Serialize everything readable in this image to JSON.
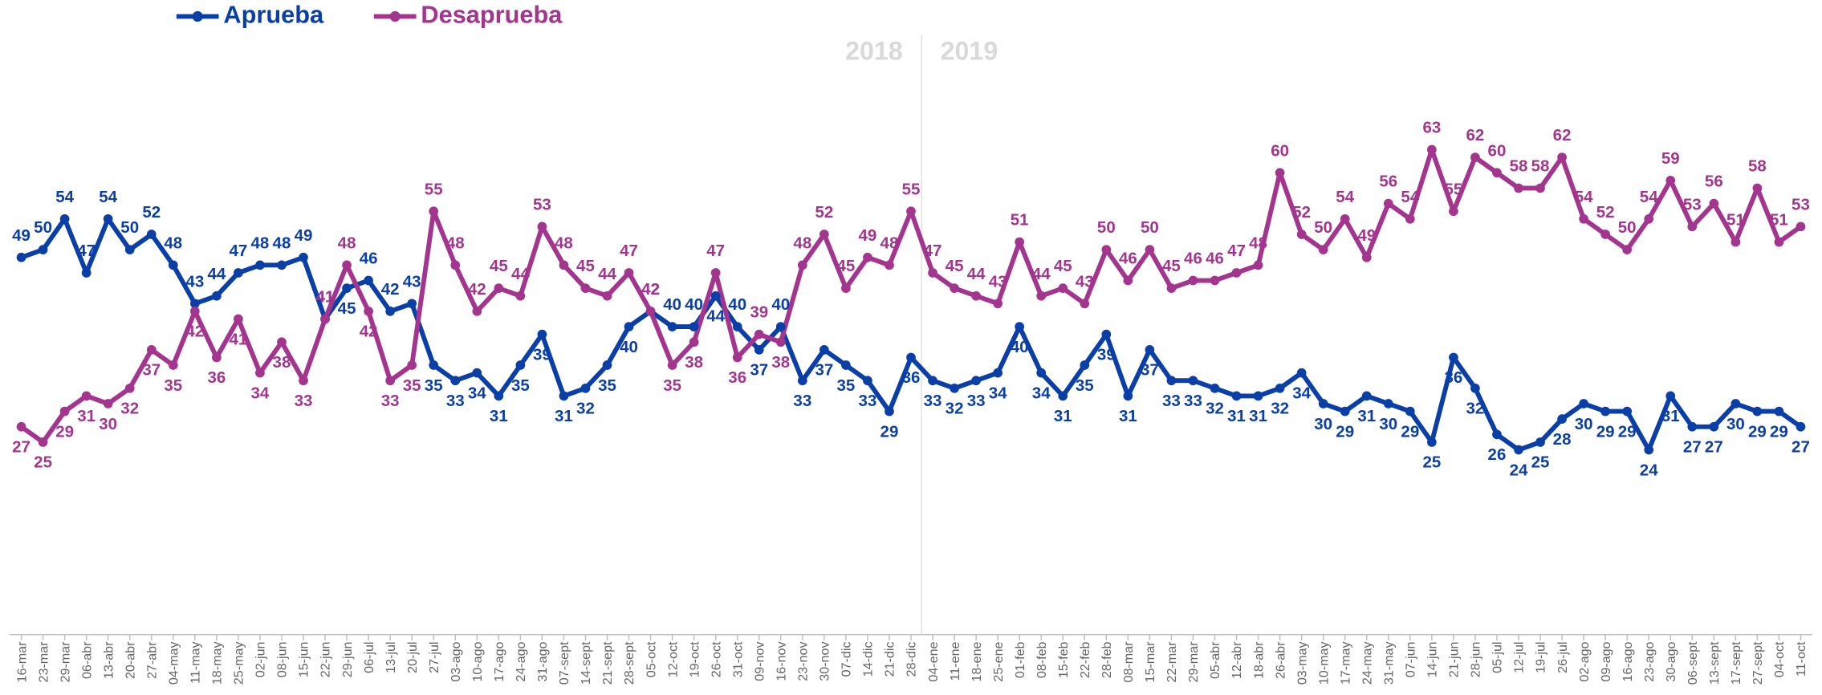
{
  "chart_data": {
    "type": "line",
    "annotations": [
      "2018",
      "2019"
    ],
    "categories": [
      "16-mar",
      "23-mar",
      "29-mar",
      "06-abr",
      "13-abr",
      "20-abr",
      "27-abr",
      "04-may",
      "11-may",
      "18-may",
      "25-may",
      "02-jun",
      "08-jun",
      "15-jun",
      "22-jun",
      "29-jun",
      "06-jul",
      "13-jul",
      "20-jul",
      "27-jul",
      "03-ago",
      "10-ago",
      "17-ago",
      "24-ago",
      "31-ago",
      "07-sept",
      "14-sept",
      "21-sept",
      "28-sept",
      "05-oct",
      "12-oct",
      "19-oct",
      "26-oct",
      "31-oct",
      "09-nov",
      "16-nov",
      "23-nov",
      "30-nov",
      "07-dic",
      "14-dic",
      "21-dic",
      "28-dic",
      "04-ene",
      "11-ene",
      "18-ene",
      "25-ene",
      "01-feb",
      "08-feb",
      "15-feb",
      "22-feb",
      "28-feb",
      "08-mar",
      "15-mar",
      "22-mar",
      "29-mar",
      "05-abr",
      "12-abr",
      "18-abr",
      "26-abr",
      "03-may",
      "10-may",
      "17-may",
      "24-may",
      "31-may",
      "07-jun",
      "14-jun",
      "21-jun",
      "28-jun",
      "05-jul",
      "12-jul",
      "19-jul",
      "26-jul",
      "02-ago",
      "09-ago",
      "16-ago",
      "23-ago",
      "30-ago",
      "06-sept",
      "13-sept",
      "17-sept",
      "27-sept",
      "04-oct",
      "11-oct"
    ],
    "series": [
      {
        "name": "Aprueba",
        "color": "#0b3fa8",
        "values": [
          49,
          50,
          54,
          47,
          54,
          50,
          52,
          48,
          43,
          44,
          47,
          48,
          48,
          49,
          41,
          45,
          46,
          42,
          43,
          35,
          33,
          34,
          31,
          35,
          39,
          31,
          32,
          35,
          40,
          42,
          40,
          40,
          44,
          40,
          37,
          40,
          33,
          37,
          35,
          33,
          29,
          36,
          33,
          32,
          33,
          34,
          40,
          34,
          31,
          35,
          39,
          31,
          37,
          33,
          33,
          32,
          31,
          31,
          32,
          34,
          30,
          29,
          31,
          30,
          29,
          25,
          36,
          32,
          26,
          24,
          25,
          28,
          30,
          29,
          29,
          24,
          31,
          27,
          27,
          30,
          29,
          29,
          27
        ]
      },
      {
        "name": "Desaprueba",
        "color": "#a3358f",
        "values": [
          27,
          25,
          29,
          31,
          30,
          32,
          37,
          35,
          42,
          36,
          41,
          34,
          38,
          33,
          41,
          48,
          42,
          33,
          35,
          55,
          48,
          42,
          45,
          44,
          53,
          48,
          45,
          44,
          47,
          42,
          35,
          38,
          47,
          36,
          39,
          38,
          48,
          52,
          45,
          49,
          48,
          55,
          47,
          45,
          44,
          43,
          51,
          44,
          45,
          43,
          50,
          46,
          50,
          45,
          46,
          46,
          47,
          48,
          60,
          52,
          50,
          54,
          49,
          56,
          54,
          63,
          55,
          62,
          60,
          58,
          58,
          62,
          54,
          52,
          50,
          54,
          59,
          53,
          56,
          51,
          58,
          51,
          53
        ]
      }
    ],
    "ylim": [
      0,
      80
    ],
    "legend": "top-left"
  }
}
